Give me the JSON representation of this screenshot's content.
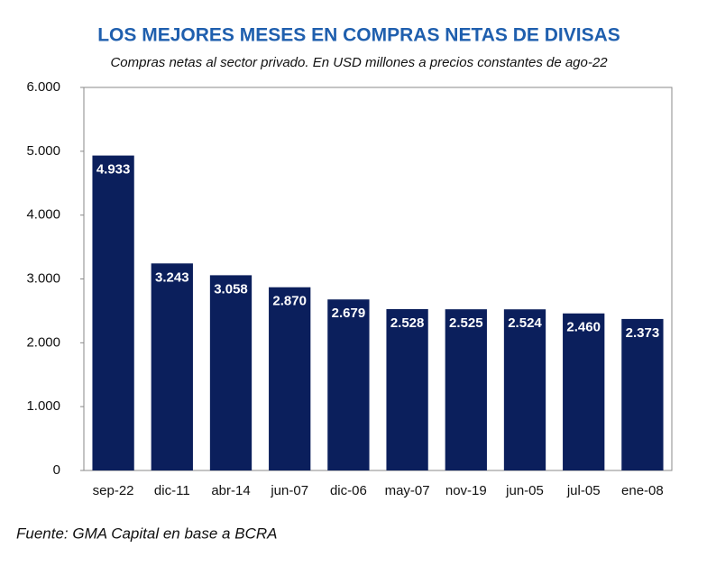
{
  "chart_data": {
    "type": "bar",
    "title": "LOS MEJORES MESES EN COMPRAS NETAS DE DIVISAS",
    "subtitle": "Compras netas al sector privado.  En USD millones a precios constantes de ago-22",
    "source": "Fuente: GMA Capital en base a BCRA",
    "categories": [
      "sep-22",
      "dic-11",
      "abr-14",
      "jun-07",
      "dic-06",
      "may-07",
      "nov-19",
      "jun-05",
      "jul-05",
      "ene-08"
    ],
    "values": [
      4933,
      3243,
      3058,
      2870,
      2679,
      2528,
      2525,
      2524,
      2460,
      2373
    ],
    "value_labels": [
      "4.933",
      "3.243",
      "3.058",
      "2.870",
      "2.679",
      "2.528",
      "2.525",
      "2.524",
      "2.460",
      "2.373"
    ],
    "color": "#0b1f5c",
    "ylim": [
      0,
      6000
    ],
    "yticks": [
      0,
      {
        "value": 1000,
        "label": "1.000"
      },
      {
        "value": 2000,
        "label": "2.000"
      },
      {
        "value": 3000,
        "label": "3.000"
      },
      {
        "value": 4000,
        "label": "4.000"
      },
      {
        "value": 5000,
        "label": "5.000"
      },
      {
        "value": 6000,
        "label": "6.000"
      }
    ],
    "grid": false
  }
}
